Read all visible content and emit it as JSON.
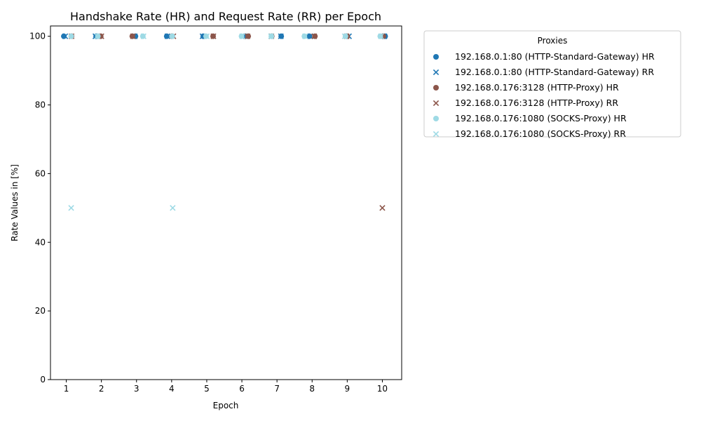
{
  "chart_data": {
    "type": "scatter",
    "title": "Handshake Rate (HR) and Request Rate (RR) per Epoch",
    "xlabel": "Epoch",
    "ylabel": "Rate Values in [%]",
    "x_ticks": [
      "1",
      "2",
      "3",
      "4",
      "5",
      "6",
      "7",
      "8",
      "9",
      "10"
    ],
    "y_ticks": [
      "0",
      "20",
      "40",
      "60",
      "80",
      "100"
    ],
    "xlim": [
      0.55,
      10.55
    ],
    "ylim": [
      0,
      103
    ],
    "grid": false,
    "legend_title": "Proxies",
    "legend_position": "outside-upper-right",
    "series": [
      {
        "name": "192.168.0.1:80 (HTTP-Standard-Gateway) HR",
        "marker": "circle",
        "color": "#1f77b4",
        "points": [
          {
            "x": 0.93,
            "y": 100
          },
          {
            "x": 1.85,
            "y": 100
          },
          {
            "x": 2.97,
            "y": 100
          },
          {
            "x": 3.86,
            "y": 100
          },
          {
            "x": 4.9,
            "y": 100
          },
          {
            "x": 6.1,
            "y": 100
          },
          {
            "x": 7.12,
            "y": 100
          },
          {
            "x": 7.92,
            "y": 100
          },
          {
            "x": 8.97,
            "y": 100
          },
          {
            "x": 10.08,
            "y": 100
          }
        ]
      },
      {
        "name": "192.168.0.1:80 (HTTP-Standard-Gateway) RR",
        "marker": "x",
        "color": "#1f77b4",
        "points": [
          {
            "x": 0.97,
            "y": 100
          },
          {
            "x": 1.83,
            "y": 100
          },
          {
            "x": 2.95,
            "y": 100
          },
          {
            "x": 3.88,
            "y": 100
          },
          {
            "x": 4.88,
            "y": 100
          },
          {
            "x": 6.12,
            "y": 100
          },
          {
            "x": 7.11,
            "y": 100
          },
          {
            "x": 7.95,
            "y": 100
          },
          {
            "x": 9.05,
            "y": 100
          },
          {
            "x": 10.06,
            "y": 100
          }
        ]
      },
      {
        "name": "192.168.0.176:3128 (HTTP-Proxy) HR",
        "marker": "circle",
        "color": "#8c564b",
        "points": [
          {
            "x": 1.15,
            "y": 100
          },
          {
            "x": 1.98,
            "y": 100
          },
          {
            "x": 2.88,
            "y": 100
          },
          {
            "x": 4.02,
            "y": 100
          },
          {
            "x": 5.18,
            "y": 100
          },
          {
            "x": 6.18,
            "y": 100
          },
          {
            "x": 6.85,
            "y": 100
          },
          {
            "x": 8.08,
            "y": 100
          },
          {
            "x": 9.0,
            "y": 100
          },
          {
            "x": 10.03,
            "y": 100
          }
        ]
      },
      {
        "name": "192.168.0.176:3128 (HTTP-Proxy) RR",
        "marker": "x",
        "color": "#8c564b",
        "points": [
          {
            "x": 1.15,
            "y": 100
          },
          {
            "x": 2.0,
            "y": 100
          },
          {
            "x": 2.9,
            "y": 100
          },
          {
            "x": 4.05,
            "y": 100
          },
          {
            "x": 5.19,
            "y": 100
          },
          {
            "x": 6.16,
            "y": 100
          },
          {
            "x": 6.84,
            "y": 100
          },
          {
            "x": 8.06,
            "y": 100
          },
          {
            "x": 8.98,
            "y": 100
          },
          {
            "x": 10.0,
            "y": 50
          }
        ]
      },
      {
        "name": "192.168.0.176:1080 (SOCKS-Proxy) HR",
        "marker": "circle",
        "color": "#9edae5",
        "points": [
          {
            "x": 1.14,
            "y": 100
          },
          {
            "x": 1.9,
            "y": 100
          },
          {
            "x": 3.18,
            "y": 100
          },
          {
            "x": 4.02,
            "y": 100
          },
          {
            "x": 4.98,
            "y": 100
          },
          {
            "x": 5.99,
            "y": 100
          },
          {
            "x": 6.84,
            "y": 100
          },
          {
            "x": 7.78,
            "y": 100
          },
          {
            "x": 8.95,
            "y": 100
          },
          {
            "x": 9.94,
            "y": 100
          }
        ]
      },
      {
        "name": "192.168.0.176:1080 (SOCKS-Proxy) RR",
        "marker": "x",
        "color": "#9edae5",
        "points": [
          {
            "x": 1.14,
            "y": 50
          },
          {
            "x": 1.88,
            "y": 100
          },
          {
            "x": 3.2,
            "y": 100
          },
          {
            "x": 4.03,
            "y": 50
          },
          {
            "x": 5.0,
            "y": 100
          },
          {
            "x": 6.01,
            "y": 100
          },
          {
            "x": 6.83,
            "y": 100
          },
          {
            "x": 7.8,
            "y": 100
          },
          {
            "x": 8.93,
            "y": 100
          },
          {
            "x": 9.96,
            "y": 100
          }
        ]
      }
    ]
  }
}
